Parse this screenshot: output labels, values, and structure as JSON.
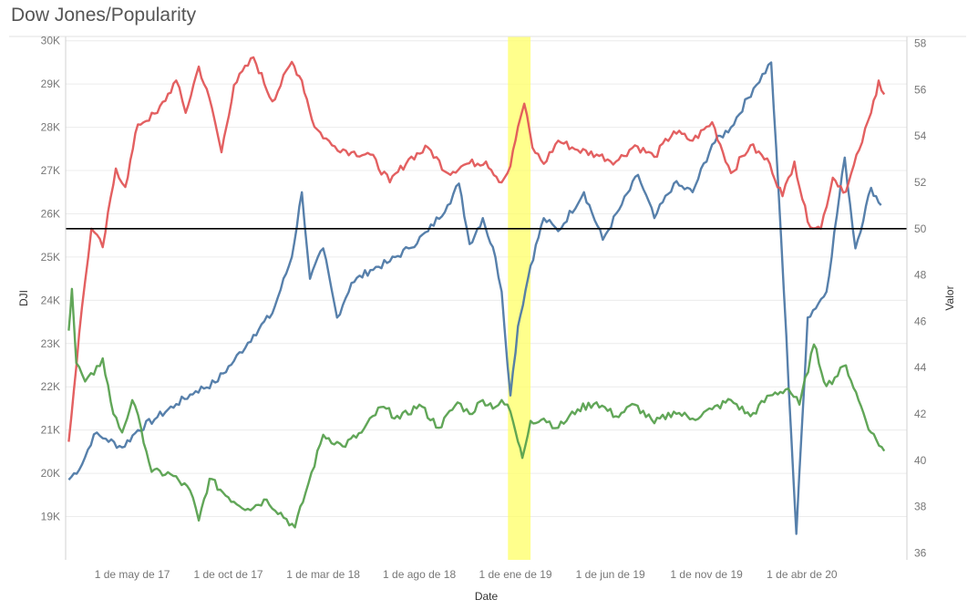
{
  "chart": {
    "title": "Dow Jones/Popularity"
  },
  "chart_data": {
    "type": "line",
    "title": "Dow Jones/Popularity",
    "xlabel": "Date",
    "ylabel": "DJI",
    "y2label": "Valor",
    "x_tick_labels": [
      "1 de may de 17",
      "1 de oct de 17",
      "1 de mar de 18",
      "1 de ago de 18",
      "1 de ene de 19",
      "1 de jun de 19",
      "1 de nov de 19",
      "1 de abr de 20"
    ],
    "x_ticks": [
      "2017-05-01",
      "2017-10-01",
      "2018-03-01",
      "2018-08-01",
      "2019-01-01",
      "2019-06-01",
      "2019-11-01",
      "2020-04-01"
    ],
    "xlim": [
      "2017-01-15",
      "2020-09-15"
    ],
    "left_axis": {
      "ticks": [
        19000,
        20000,
        21000,
        22000,
        23000,
        24000,
        25000,
        26000,
        27000,
        28000,
        29000,
        30000
      ],
      "tick_labels": [
        "19K",
        "20K",
        "21K",
        "22K",
        "23K",
        "24K",
        "25K",
        "26K",
        "27K",
        "28K",
        "29K",
        "30K"
      ],
      "ylim": [
        18000,
        30100
      ]
    },
    "right_axis": {
      "ticks": [
        36,
        38,
        40,
        42,
        44,
        46,
        48,
        50,
        52,
        54,
        56,
        58
      ],
      "tick_labels": [
        "36",
        "38",
        "40",
        "42",
        "44",
        "46",
        "48",
        "50",
        "52",
        "54",
        "56",
        "58"
      ],
      "ylim": [
        35.7,
        58.3
      ]
    },
    "reference_line": {
      "axis": "right",
      "value": 50,
      "color": "#000000"
    },
    "highlight_band": {
      "start": "2018-12-20",
      "end": "2019-01-25",
      "color": "#ffff66"
    },
    "grid": true,
    "series": [
      {
        "axis": "left",
        "color": "#4e79a7",
        "values": [
          [
            "2017-01-20",
            19850
          ],
          [
            "2017-02-10",
            20200
          ],
          [
            "2017-03-01",
            20900
          ],
          [
            "2017-03-20",
            20800
          ],
          [
            "2017-04-15",
            20600
          ],
          [
            "2017-05-10",
            21000
          ],
          [
            "2017-06-10",
            21300
          ],
          [
            "2017-07-10",
            21600
          ],
          [
            "2017-08-10",
            21900
          ],
          [
            "2017-09-10",
            22100
          ],
          [
            "2017-10-10",
            22600
          ],
          [
            "2017-11-10",
            23200
          ],
          [
            "2017-12-10",
            23700
          ],
          [
            "2018-01-10",
            25000
          ],
          [
            "2018-01-26",
            26500
          ],
          [
            "2018-02-08",
            24500
          ],
          [
            "2018-03-01",
            25200
          ],
          [
            "2018-03-23",
            23600
          ],
          [
            "2018-04-15",
            24400
          ],
          [
            "2018-05-15",
            24700
          ],
          [
            "2018-06-15",
            24900
          ],
          [
            "2018-07-15",
            25200
          ],
          [
            "2018-08-15",
            25600
          ],
          [
            "2018-09-15",
            26200
          ],
          [
            "2018-10-03",
            26700
          ],
          [
            "2018-10-20",
            25300
          ],
          [
            "2018-11-10",
            25900
          ],
          [
            "2018-11-30",
            25000
          ],
          [
            "2018-12-10",
            24200
          ],
          [
            "2018-12-24",
            21800
          ],
          [
            "2019-01-05",
            23400
          ],
          [
            "2019-01-25",
            24800
          ],
          [
            "2019-02-15",
            25900
          ],
          [
            "2019-03-10",
            25600
          ],
          [
            "2019-04-20",
            26500
          ],
          [
            "2019-05-20",
            25400
          ],
          [
            "2019-06-15",
            26100
          ],
          [
            "2019-07-15",
            26900
          ],
          [
            "2019-08-10",
            25900
          ],
          [
            "2019-09-10",
            26700
          ],
          [
            "2019-10-10",
            26500
          ],
          [
            "2019-11-10",
            27600
          ],
          [
            "2019-12-10",
            28000
          ],
          [
            "2020-01-15",
            28900
          ],
          [
            "2020-02-12",
            29500
          ],
          [
            "2020-02-28",
            25400
          ],
          [
            "2020-03-23",
            18600
          ],
          [
            "2020-04-10",
            23600
          ],
          [
            "2020-05-10",
            24200
          ],
          [
            "2020-06-08",
            27300
          ],
          [
            "2020-06-25",
            25200
          ],
          [
            "2020-07-20",
            26600
          ],
          [
            "2020-08-05",
            26200
          ]
        ]
      },
      {
        "axis": "right",
        "color": "#e15759",
        "values": [
          [
            "2017-01-20",
            40.8
          ],
          [
            "2017-01-28",
            43.0
          ],
          [
            "2017-02-10",
            46.6
          ],
          [
            "2017-02-25",
            50.0
          ],
          [
            "2017-03-15",
            49.2
          ],
          [
            "2017-04-05",
            52.6
          ],
          [
            "2017-04-20",
            51.8
          ],
          [
            "2017-05-10",
            54.5
          ],
          [
            "2017-06-10",
            55.0
          ],
          [
            "2017-07-10",
            56.4
          ],
          [
            "2017-07-25",
            55.0
          ],
          [
            "2017-08-15",
            57.0
          ],
          [
            "2017-09-05",
            55.2
          ],
          [
            "2017-09-20",
            53.3
          ],
          [
            "2017-10-10",
            56.2
          ],
          [
            "2017-11-10",
            57.4
          ],
          [
            "2017-12-10",
            55.5
          ],
          [
            "2018-01-10",
            57.2
          ],
          [
            "2018-01-26",
            56.4
          ],
          [
            "2018-02-15",
            54.4
          ],
          [
            "2018-03-15",
            53.6
          ],
          [
            "2018-04-15",
            53.3
          ],
          [
            "2018-05-15",
            53.2
          ],
          [
            "2018-06-15",
            52.0
          ],
          [
            "2018-07-15",
            53.0
          ],
          [
            "2018-08-15",
            53.5
          ],
          [
            "2018-09-15",
            52.4
          ],
          [
            "2018-10-15",
            52.8
          ],
          [
            "2018-11-15",
            52.9
          ],
          [
            "2018-12-10",
            52.0
          ],
          [
            "2018-12-24",
            52.7
          ],
          [
            "2019-01-05",
            54.4
          ],
          [
            "2019-01-15",
            55.4
          ],
          [
            "2019-01-28",
            53.5
          ],
          [
            "2019-02-15",
            52.8
          ],
          [
            "2019-03-10",
            53.8
          ],
          [
            "2019-04-10",
            53.4
          ],
          [
            "2019-05-10",
            53.2
          ],
          [
            "2019-06-10",
            52.9
          ],
          [
            "2019-07-10",
            53.6
          ],
          [
            "2019-08-10",
            53.1
          ],
          [
            "2019-09-10",
            54.2
          ],
          [
            "2019-10-10",
            53.8
          ],
          [
            "2019-11-10",
            54.6
          ],
          [
            "2019-12-10",
            52.4
          ],
          [
            "2020-01-10",
            53.6
          ],
          [
            "2020-02-10",
            52.8
          ],
          [
            "2020-03-01",
            51.4
          ],
          [
            "2020-03-20",
            52.9
          ],
          [
            "2020-04-10",
            50.3
          ],
          [
            "2020-05-01",
            50.0
          ],
          [
            "2020-05-20",
            52.2
          ],
          [
            "2020-06-10",
            51.6
          ],
          [
            "2020-07-01",
            53.4
          ],
          [
            "2020-07-20",
            55.0
          ],
          [
            "2020-08-01",
            56.4
          ],
          [
            "2020-08-10",
            55.8
          ]
        ]
      },
      {
        "axis": "right",
        "color": "#59a14f",
        "values": [
          [
            "2017-01-20",
            45.6
          ],
          [
            "2017-01-25",
            47.4
          ],
          [
            "2017-02-01",
            44.2
          ],
          [
            "2017-02-15",
            43.4
          ],
          [
            "2017-03-01",
            43.7
          ],
          [
            "2017-03-15",
            44.4
          ],
          [
            "2017-04-01",
            42.0
          ],
          [
            "2017-04-15",
            41.2
          ],
          [
            "2017-05-01",
            42.6
          ],
          [
            "2017-05-15",
            41.4
          ],
          [
            "2017-06-01",
            39.5
          ],
          [
            "2017-07-01",
            39.4
          ],
          [
            "2017-08-01",
            38.7
          ],
          [
            "2017-08-15",
            37.4
          ],
          [
            "2017-09-01",
            39.2
          ],
          [
            "2017-10-01",
            38.4
          ],
          [
            "2017-11-01",
            37.9
          ],
          [
            "2017-12-01",
            38.3
          ],
          [
            "2018-01-15",
            37.1
          ],
          [
            "2018-02-01",
            38.6
          ],
          [
            "2018-03-01",
            41.1
          ],
          [
            "2018-04-01",
            40.6
          ],
          [
            "2018-05-01",
            41.2
          ],
          [
            "2018-06-01",
            42.3
          ],
          [
            "2018-07-01",
            41.8
          ],
          [
            "2018-08-01",
            42.4
          ],
          [
            "2018-09-01",
            41.4
          ],
          [
            "2018-10-01",
            42.5
          ],
          [
            "2018-10-20",
            42.0
          ],
          [
            "2018-11-10",
            42.6
          ],
          [
            "2018-11-30",
            42.3
          ],
          [
            "2018-12-10",
            42.6
          ],
          [
            "2018-12-24",
            42.1
          ],
          [
            "2019-01-05",
            40.8
          ],
          [
            "2019-01-12",
            40.1
          ],
          [
            "2019-01-25",
            41.7
          ],
          [
            "2019-02-15",
            41.8
          ],
          [
            "2019-03-10",
            41.4
          ],
          [
            "2019-04-10",
            42.2
          ],
          [
            "2019-05-10",
            42.5
          ],
          [
            "2019-06-10",
            41.9
          ],
          [
            "2019-07-10",
            42.4
          ],
          [
            "2019-08-10",
            41.6
          ],
          [
            "2019-09-10",
            42.1
          ],
          [
            "2019-10-10",
            41.8
          ],
          [
            "2019-11-10",
            42.2
          ],
          [
            "2019-12-10",
            42.6
          ],
          [
            "2020-01-10",
            41.9
          ],
          [
            "2020-02-10",
            42.8
          ],
          [
            "2020-03-10",
            43.1
          ],
          [
            "2020-03-28",
            42.4
          ],
          [
            "2020-04-20",
            45.0
          ],
          [
            "2020-05-10",
            43.2
          ],
          [
            "2020-06-10",
            44.1
          ],
          [
            "2020-06-30",
            42.6
          ],
          [
            "2020-07-20",
            41.2
          ],
          [
            "2020-08-10",
            40.4
          ]
        ]
      }
    ]
  }
}
